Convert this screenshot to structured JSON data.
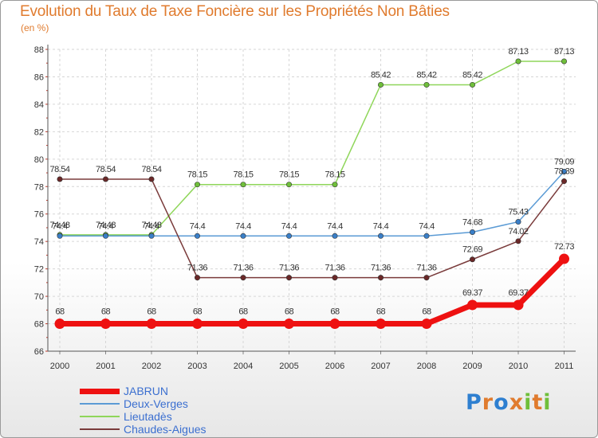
{
  "title": "Evolution du Taux de Taxe Foncière sur les Propriétés Non Bâties",
  "subtitle": "(en %)",
  "logo": {
    "letters": [
      "P",
      "r",
      "o",
      "x",
      "i",
      "t",
      "i"
    ],
    "colors": [
      "#2e7fd0",
      "#e07b2e",
      "#2e7fd0",
      "#e07b2e",
      "#6fbf3a",
      "#e07b2e",
      "#6fbf3a"
    ]
  },
  "chart_data": {
    "type": "line",
    "title": "Evolution du Taux de Taxe Foncière sur les Propriétés Non Bâties",
    "ylabel": "(en %)",
    "xlabel": "",
    "ylim": [
      66,
      88
    ],
    "yticks": [
      66,
      68,
      70,
      72,
      74,
      76,
      78,
      80,
      82,
      84,
      86,
      88
    ],
    "categories": [
      "2000",
      "2001",
      "2002",
      "2003",
      "2004",
      "2005",
      "2006",
      "2007",
      "2008",
      "2009",
      "2010",
      "2011"
    ],
    "grid": true,
    "series": [
      {
        "name": "Lieutadès",
        "color": "#8fd65a",
        "dot_color": "#6fbf3a",
        "values": [
          74.48,
          74.48,
          74.48,
          78.15,
          78.15,
          78.15,
          78.15,
          85.42,
          85.42,
          85.42,
          87.13,
          87.13
        ],
        "labels": [
          "74.48",
          "74.48",
          "74.48",
          "78.15",
          "78.15",
          "78.15",
          "78.15",
          "85.42",
          "85.42",
          "85.42",
          "87.13",
          "87.13"
        ]
      },
      {
        "name": "Deux-Verges",
        "color": "#5b9bd5",
        "dot_color": "#3a7fc8",
        "values": [
          74.4,
          74.4,
          74.4,
          74.4,
          74.4,
          74.4,
          74.4,
          74.4,
          74.4,
          74.68,
          75.43,
          79.09
        ],
        "labels": [
          "74.4",
          "74.4",
          "74.4",
          "74.4",
          "74.4",
          "74.4",
          "74.4",
          "74.4",
          "74.4",
          "74.68",
          "75.43",
          "79.09"
        ]
      },
      {
        "name": "Chaudes-Aigues",
        "color": "#7a3b3b",
        "dot_color": "#6b2828",
        "values": [
          78.54,
          78.54,
          78.54,
          71.36,
          71.36,
          71.36,
          71.36,
          71.36,
          71.36,
          72.69,
          74.02,
          78.39
        ],
        "labels": [
          "78.54",
          "78.54",
          "78.54",
          "71.36",
          "71.36",
          "71.36",
          "71.36",
          "71.36",
          "71.36",
          "72.69",
          "74.02",
          "78.39"
        ]
      },
      {
        "name": "JABRUN",
        "color": "#ee1111",
        "dot_color": "#ee1111",
        "values": [
          68,
          68,
          68,
          68,
          68,
          68,
          68,
          68,
          68,
          69.37,
          69.37,
          72.73
        ],
        "labels": [
          "68",
          "68",
          "68",
          "68",
          "68",
          "68",
          "68",
          "68",
          "68",
          "69.37",
          "69.37",
          "72.73"
        ]
      }
    ],
    "legend": [
      {
        "name": "JABRUN",
        "color": "#ee1111",
        "weight": "thick"
      },
      {
        "name": "Deux-Verges",
        "color": "#5b9bd5",
        "weight": "thin"
      },
      {
        "name": "Lieutadès",
        "color": "#8fd65a",
        "weight": "thin"
      },
      {
        "name": "Chaudes-Aigues",
        "color": "#7a3b3b",
        "weight": "thin"
      }
    ]
  }
}
